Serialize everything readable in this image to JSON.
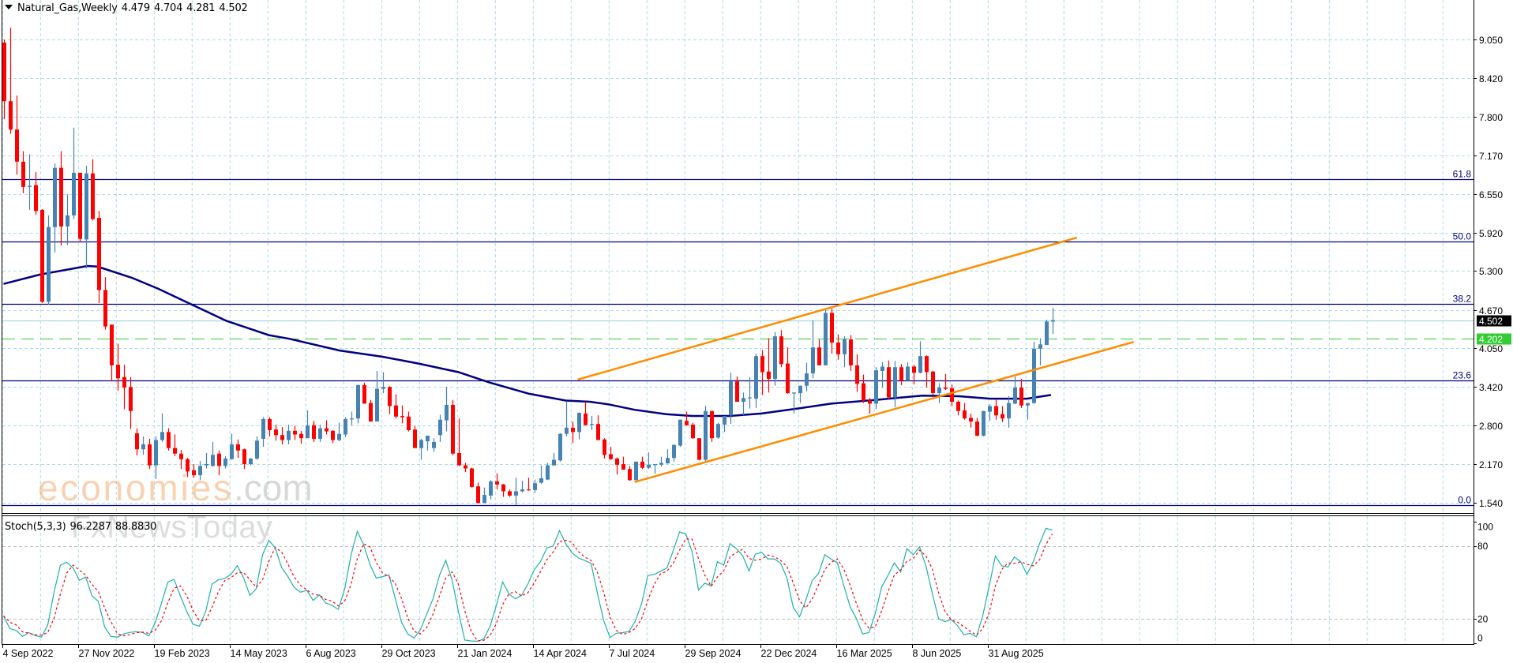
{
  "header": {
    "symbol_timeframe": "Natural_Gas,Weekly",
    "open": "4.479",
    "high": "4.704",
    "low": "4.281",
    "close": "4.502"
  },
  "indicator": {
    "label": "Stoch(5,3,3)",
    "k_value": "96.2287",
    "d_value": "88.8830"
  },
  "watermark": {
    "brand_main": "economies",
    "brand_suffix": ".com",
    "brand2": "FxNewsToday"
  },
  "colors": {
    "bull": "#4682B4",
    "bear": "#FF0000",
    "ma": "#000080",
    "fib": "#000080",
    "channel": "#FF8C00",
    "grid": "#B0DDE4",
    "price_line": "#A8D8E0",
    "bid_dash": "#32CD32",
    "stoch_k": "#20B2AA",
    "stoch_d": "#FF0000",
    "last_price_bg": "#000000",
    "bid_bg": "#32CD32"
  },
  "chart_data": {
    "type": "candlestick",
    "title": "Natural_Gas,Weekly",
    "ylim": [
      1.38,
      9.69
    ],
    "y_ticks": [
      "9.050",
      "8.420",
      "7.800",
      "7.170",
      "6.550",
      "5.920",
      "5.300",
      "4.670",
      "4.050",
      "3.420",
      "2.800",
      "2.170",
      "1.540"
    ],
    "x_labels": [
      {
        "index": 0,
        "label": "4 Sep 2022"
      },
      {
        "index": 12,
        "label": "27 Nov 2022"
      },
      {
        "index": 24,
        "label": "19 Feb 2023"
      },
      {
        "index": 36,
        "label": "14 May 2023"
      },
      {
        "index": 48,
        "label": "6 Aug 2023"
      },
      {
        "index": 60,
        "label": "29 Oct 2023"
      },
      {
        "index": 72,
        "label": "21 Jan 2024"
      },
      {
        "index": 84,
        "label": "14 Apr 2024"
      },
      {
        "index": 96,
        "label": "7 Jul 2024"
      },
      {
        "index": 108,
        "label": "29 Sep 2024"
      },
      {
        "index": 120,
        "label": "22 Dec 2024"
      },
      {
        "index": 132,
        "label": "16 Mar 2025"
      },
      {
        "index": 144,
        "label": "8 Jun 2025"
      },
      {
        "index": 156,
        "label": "31 Aug 2025"
      }
    ],
    "ohlc_columns": [
      "open",
      "high",
      "low",
      "close"
    ],
    "ohlc": [
      [
        9.0,
        9.05,
        7.76,
        8.05
      ],
      [
        8.05,
        9.24,
        7.52,
        7.59
      ],
      [
        7.59,
        8.14,
        6.86,
        7.07
      ],
      [
        7.07,
        7.24,
        6.56,
        6.66
      ],
      [
        6.66,
        7.19,
        6.29,
        6.68
      ],
      [
        6.69,
        6.9,
        6.21,
        6.27
      ],
      [
        6.29,
        6.3,
        4.78,
        4.8
      ],
      [
        4.8,
        6.2,
        4.75,
        6.01
      ],
      [
        6.01,
        7.04,
        5.6,
        6.97
      ],
      [
        6.97,
        7.24,
        5.71,
        6.02
      ],
      [
        6.02,
        6.54,
        5.72,
        6.2
      ],
      [
        6.2,
        7.62,
        6.14,
        6.89
      ],
      [
        6.89,
        6.89,
        5.78,
        5.82
      ],
      [
        5.81,
        7.0,
        5.34,
        6.88
      ],
      [
        6.88,
        7.11,
        6.12,
        6.14
      ],
      [
        6.16,
        6.27,
        4.78,
        4.99
      ],
      [
        4.99,
        5.2,
        4.35,
        4.4
      ],
      [
        4.43,
        4.43,
        3.51,
        3.77
      ],
      [
        3.78,
        4.12,
        3.36,
        3.56
      ],
      [
        3.58,
        3.78,
        3.06,
        3.41
      ],
      [
        3.42,
        3.58,
        2.74,
        3.03
      ],
      [
        2.67,
        2.75,
        2.31,
        2.41
      ],
      [
        2.41,
        2.62,
        2.32,
        2.49
      ],
      [
        2.49,
        2.58,
        2.09,
        2.15
      ],
      [
        2.15,
        2.62,
        1.93,
        2.56
      ],
      [
        2.56,
        2.99,
        2.53,
        2.69
      ],
      [
        2.69,
        2.75,
        2.39,
        2.43
      ],
      [
        2.43,
        2.65,
        2.3,
        2.34
      ],
      [
        2.34,
        2.4,
        2.09,
        2.25
      ],
      [
        2.25,
        2.27,
        1.96,
        2.05
      ],
      [
        2.07,
        2.17,
        1.95,
        1.99
      ],
      [
        1.99,
        2.22,
        1.91,
        2.14
      ],
      [
        2.15,
        2.35,
        2.1,
        2.17
      ],
      [
        2.14,
        2.53,
        2.13,
        2.32
      ],
      [
        2.34,
        2.39,
        1.99,
        2.14
      ],
      [
        2.14,
        2.3,
        2.1,
        2.26
      ],
      [
        2.25,
        2.66,
        2.24,
        2.49
      ],
      [
        2.49,
        2.57,
        2.27,
        2.39
      ],
      [
        2.41,
        2.42,
        2.09,
        2.17
      ],
      [
        2.17,
        2.27,
        2.15,
        2.26
      ],
      [
        2.26,
        2.62,
        2.24,
        2.55
      ],
      [
        2.58,
        2.93,
        2.45,
        2.9
      ],
      [
        2.9,
        2.93,
        2.62,
        2.72
      ],
      [
        2.73,
        2.81,
        2.55,
        2.64
      ],
      [
        2.64,
        2.77,
        2.49,
        2.56
      ],
      [
        2.56,
        2.81,
        2.49,
        2.71
      ],
      [
        2.71,
        2.79,
        2.56,
        2.65
      ],
      [
        2.66,
        2.71,
        2.5,
        2.59
      ],
      [
        2.59,
        3.04,
        2.59,
        2.8
      ],
      [
        2.8,
        2.87,
        2.53,
        2.58
      ],
      [
        2.58,
        2.81,
        2.53,
        2.75
      ],
      [
        2.75,
        2.88,
        2.65,
        2.7
      ],
      [
        2.71,
        2.72,
        2.51,
        2.56
      ],
      [
        2.56,
        2.84,
        2.54,
        2.66
      ],
      [
        2.65,
        2.93,
        2.61,
        2.9
      ],
      [
        2.9,
        3.02,
        2.8,
        2.91
      ],
      [
        2.91,
        3.46,
        2.83,
        3.45
      ],
      [
        3.45,
        3.49,
        3.15,
        3.15
      ],
      [
        3.16,
        3.21,
        2.86,
        2.86
      ],
      [
        2.86,
        3.68,
        2.86,
        3.39
      ],
      [
        3.39,
        3.66,
        3.32,
        3.42
      ],
      [
        3.42,
        3.43,
        2.98,
        3.11
      ],
      [
        3.12,
        3.3,
        2.91,
        2.94
      ],
      [
        2.95,
        3.12,
        2.83,
        2.93
      ],
      [
        2.94,
        3.02,
        2.7,
        2.72
      ],
      [
        2.73,
        2.79,
        2.43,
        2.43
      ],
      [
        2.43,
        2.58,
        2.24,
        2.56
      ],
      [
        2.54,
        2.63,
        2.39,
        2.63
      ],
      [
        2.43,
        2.59,
        2.37,
        2.53
      ],
      [
        2.64,
        2.97,
        2.53,
        2.89
      ],
      [
        2.88,
        3.42,
        2.7,
        3.13
      ],
      [
        3.13,
        3.21,
        2.31,
        2.34
      ],
      [
        2.35,
        2.91,
        2.14,
        2.15
      ],
      [
        2.15,
        2.19,
        2.04,
        2.1
      ],
      [
        2.1,
        2.11,
        1.79,
        1.8
      ],
      [
        1.81,
        1.87,
        1.53,
        1.54
      ],
      [
        1.54,
        1.79,
        1.54,
        1.67
      ],
      [
        1.66,
        1.91,
        1.6,
        1.89
      ],
      [
        1.89,
        2.02,
        1.76,
        1.84
      ],
      [
        1.84,
        1.85,
        1.64,
        1.73
      ],
      [
        1.73,
        1.76,
        1.64,
        1.66
      ],
      [
        1.66,
        1.95,
        1.51,
        1.73
      ],
      [
        1.73,
        1.9,
        1.71,
        1.76
      ],
      [
        1.76,
        1.95,
        1.74,
        1.75
      ],
      [
        1.75,
        1.92,
        1.7,
        1.86
      ],
      [
        1.87,
        2.15,
        1.85,
        1.94
      ],
      [
        1.92,
        2.19,
        1.91,
        2.15
      ],
      [
        2.15,
        2.35,
        2.14,
        2.24
      ],
      [
        2.23,
        2.67,
        2.21,
        2.66
      ],
      [
        2.66,
        3.18,
        2.62,
        2.76
      ],
      [
        2.76,
        2.86,
        2.51,
        2.69
      ],
      [
        2.69,
        3.01,
        2.57,
        3.0
      ],
      [
        2.99,
        3.18,
        2.8,
        2.8
      ],
      [
        2.81,
        2.95,
        2.72,
        2.82
      ],
      [
        2.82,
        2.96,
        2.56,
        2.56
      ],
      [
        2.57,
        2.59,
        2.26,
        2.32
      ],
      [
        2.33,
        2.45,
        2.24,
        2.25
      ],
      [
        2.26,
        2.28,
        2.0,
        2.16
      ],
      [
        2.17,
        2.29,
        2.08,
        2.08
      ],
      [
        2.09,
        2.14,
        1.9,
        1.91
      ],
      [
        1.91,
        2.21,
        1.91,
        2.21
      ],
      [
        2.21,
        2.29,
        2.09,
        2.11
      ],
      [
        2.11,
        2.36,
        2.09,
        2.16
      ],
      [
        2.16,
        2.17,
        2.01,
        2.17
      ],
      [
        2.16,
        2.29,
        2.13,
        2.19
      ],
      [
        2.18,
        2.41,
        2.18,
        2.27
      ],
      [
        2.27,
        2.49,
        2.21,
        2.48
      ],
      [
        2.47,
        2.89,
        2.45,
        2.89
      ],
      [
        2.87,
        3.02,
        2.79,
        2.8
      ],
      [
        2.81,
        2.84,
        2.58,
        2.59
      ],
      [
        2.59,
        2.59,
        2.23,
        2.24
      ],
      [
        2.24,
        3.11,
        2.21,
        3.03
      ],
      [
        3.03,
        3.03,
        2.53,
        2.59
      ],
      [
        2.6,
        2.84,
        2.58,
        2.82
      ],
      [
        2.81,
        2.95,
        2.69,
        2.95
      ],
      [
        2.96,
        3.65,
        2.82,
        3.51
      ],
      [
        3.51,
        3.59,
        3.18,
        3.18
      ],
      [
        3.18,
        3.33,
        2.96,
        3.24
      ],
      [
        3.24,
        3.58,
        3.07,
        3.25
      ],
      [
        3.23,
        3.96,
        3.08,
        3.92
      ],
      [
        3.92,
        4.02,
        3.29,
        3.66
      ],
      [
        3.67,
        4.21,
        3.33,
        3.55
      ],
      [
        3.55,
        4.31,
        3.44,
        4.24
      ],
      [
        4.24,
        4.34,
        3.74,
        3.79
      ],
      [
        3.8,
        4.06,
        3.31,
        3.32
      ],
      [
        3.32,
        3.33,
        2.99,
        3.33
      ],
      [
        3.32,
        3.44,
        3.16,
        3.44
      ],
      [
        3.44,
        3.81,
        3.35,
        3.64
      ],
      [
        3.64,
        4.5,
        3.56,
        4.06
      ],
      [
        4.06,
        4.19,
        3.77,
        3.77
      ],
      [
        3.77,
        4.69,
        3.77,
        4.62
      ],
      [
        4.62,
        4.69,
        3.96,
        4.14
      ],
      [
        4.14,
        4.27,
        3.86,
        3.95
      ],
      [
        3.95,
        4.24,
        3.74,
        4.19
      ],
      [
        4.19,
        4.26,
        3.68,
        3.77
      ],
      [
        3.77,
        3.95,
        3.34,
        3.47
      ],
      [
        3.48,
        3.62,
        3.16,
        3.2
      ],
      [
        3.2,
        3.24,
        2.99,
        3.15
      ],
      [
        3.15,
        3.74,
        3.06,
        3.69
      ],
      [
        3.68,
        3.82,
        3.41,
        3.75
      ],
      [
        3.74,
        3.85,
        3.22,
        3.25
      ],
      [
        3.25,
        3.84,
        3.09,
        3.74
      ],
      [
        3.74,
        3.79,
        3.45,
        3.52
      ],
      [
        3.52,
        3.82,
        3.52,
        3.75
      ],
      [
        3.75,
        3.78,
        3.46,
        3.65
      ],
      [
        3.65,
        4.16,
        3.64,
        3.92
      ],
      [
        3.92,
        3.93,
        3.41,
        3.66
      ],
      [
        3.67,
        3.68,
        3.29,
        3.32
      ],
      [
        3.32,
        3.48,
        3.16,
        3.41
      ],
      [
        3.41,
        3.63,
        3.37,
        3.39
      ],
      [
        3.4,
        3.46,
        3.11,
        3.18
      ],
      [
        3.18,
        3.2,
        2.96,
        3.03
      ],
      [
        3.04,
        3.16,
        2.89,
        2.91
      ],
      [
        2.92,
        2.99,
        2.76,
        2.86
      ],
      [
        2.86,
        2.92,
        2.62,
        2.63
      ],
      [
        2.63,
        3.03,
        2.62,
        3.03
      ],
      [
        3.02,
        3.14,
        2.87,
        3.11
      ],
      [
        3.11,
        3.23,
        2.89,
        2.96
      ],
      [
        2.98,
        3.11,
        2.85,
        2.91
      ],
      [
        2.91,
        3.27,
        2.76,
        3.16
      ],
      [
        3.15,
        3.59,
        3.14,
        3.41
      ],
      [
        3.41,
        3.55,
        3.08,
        3.12
      ],
      [
        3.12,
        3.16,
        2.89,
        3.16
      ],
      [
        3.16,
        4.15,
        3.15,
        4.04
      ],
      [
        4.04,
        4.21,
        3.77,
        4.11
      ],
      [
        4.1,
        4.51,
        4.1,
        4.48
      ],
      [
        4.479,
        4.704,
        4.281,
        4.502
      ]
    ],
    "moving_average": [
      [
        0,
        5.09
      ],
      [
        5.75,
        5.24
      ],
      [
        13.25,
        5.38
      ],
      [
        14.9,
        5.37
      ],
      [
        20.3,
        5.19
      ],
      [
        24.5,
        5.01
      ],
      [
        29.9,
        4.75
      ],
      [
        35.3,
        4.49
      ],
      [
        39.1,
        4.36
      ],
      [
        42,
        4.26
      ],
      [
        45.3,
        4.2
      ],
      [
        53.2,
        4.01
      ],
      [
        59.9,
        3.91
      ],
      [
        65.7,
        3.8
      ],
      [
        72,
        3.66
      ],
      [
        77,
        3.49
      ],
      [
        83.2,
        3.31
      ],
      [
        89,
        3.2
      ],
      [
        92.8,
        3.18
      ],
      [
        95.7,
        3.14
      ],
      [
        99.9,
        3.05
      ],
      [
        104.9,
        2.98
      ],
      [
        109,
        2.95
      ],
      [
        115,
        2.95
      ],
      [
        120,
        2.99
      ],
      [
        125,
        3.06
      ],
      [
        131,
        3.15
      ],
      [
        138,
        3.21
      ],
      [
        145.4,
        3.28
      ],
      [
        151.2,
        3.27
      ],
      [
        156.2,
        3.23
      ],
      [
        162,
        3.23
      ],
      [
        165.8,
        3.29
      ]
    ],
    "fibonacci": [
      {
        "label": "61.8",
        "price": 6.79
      },
      {
        "label": "50.0",
        "price": 5.78
      },
      {
        "label": "38.2",
        "price": 4.77
      },
      {
        "label": "23.6",
        "price": 3.53
      },
      {
        "label": "0.0",
        "price": 1.505
      }
    ],
    "channel": {
      "upper": [
        [
          90.9,
          3.54
        ],
        [
          169.9,
          5.84
        ]
      ],
      "lower": [
        [
          99.9,
          1.88
        ],
        [
          178.9,
          4.15
        ]
      ]
    },
    "last_price": {
      "value": 4.502,
      "label": "4.502"
    },
    "bid_line": {
      "value": 4.202,
      "label": "4.202"
    },
    "stochastic": {
      "k_period": 5,
      "d_period": 3,
      "slowing": 3,
      "levels": [
        20,
        80
      ],
      "y_ticks": [
        "100",
        "80",
        "20",
        "0"
      ],
      "ylim": [
        0,
        100
      ]
    }
  }
}
